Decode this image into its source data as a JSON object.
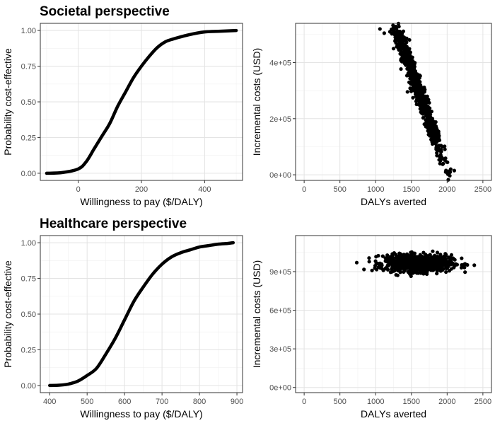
{
  "titles": {
    "top": "Societal perspective",
    "bottom": "Healthcare perspective"
  },
  "chart_data": [
    {
      "type": "line",
      "panel": "top-left",
      "xlabel": "Willingness to pay ($/DALY)",
      "ylabel": "Probability cost-effective",
      "xlim": [
        -120,
        520
      ],
      "ylim": [
        -0.05,
        1.05
      ],
      "xticks": [
        0,
        200,
        400
      ],
      "xtick_labels": [
        "0",
        "200",
        "400"
      ],
      "yticks": [
        0,
        0.25,
        0.5,
        0.75,
        1
      ],
      "ytick_labels": [
        "0.00",
        "0.25",
        "0.50",
        "0.75",
        "1.00"
      ],
      "grid": true,
      "series": [
        {
          "x": [
            -100,
            -50,
            0,
            25,
            50,
            75,
            100,
            125,
            150,
            175,
            200,
            225,
            250,
            275,
            300,
            350,
            400,
            450,
            500
          ],
          "y": [
            0.0,
            0.005,
            0.03,
            0.08,
            0.17,
            0.26,
            0.35,
            0.47,
            0.57,
            0.67,
            0.75,
            0.82,
            0.88,
            0.92,
            0.94,
            0.97,
            0.99,
            0.995,
            1.0
          ]
        }
      ]
    },
    {
      "type": "scatter",
      "panel": "top-right",
      "xlabel": "DALYs averted",
      "ylabel": "Incremental costs (USD)",
      "xlim": [
        -120,
        2620
      ],
      "ylim": [
        -20000,
        540000
      ],
      "xticks": [
        0,
        500,
        1000,
        1500,
        2000,
        2500
      ],
      "xtick_labels": [
        "0",
        "500",
        "1000",
        "1500",
        "2000",
        "2500"
      ],
      "yticks": [
        0,
        200000,
        400000
      ],
      "ytick_labels": [
        "0e+00",
        "2e+05",
        "4e+05"
      ],
      "grid": true,
      "distribution": {
        "x_mean": 1560,
        "x_sd": 200,
        "y_intercept": 1420000,
        "y_slope": -700,
        "y_sd": 28000,
        "n": 900
      },
      "sample_points": [
        [
          1060,
          520000
        ],
        [
          1120,
          505000
        ],
        [
          1200,
          510000
        ],
        [
          1250,
          450000
        ],
        [
          1900,
          40000
        ],
        [
          2050,
          20000
        ],
        [
          2100,
          15000
        ],
        [
          1980,
          10000
        ]
      ]
    },
    {
      "type": "line",
      "panel": "bottom-left",
      "xlabel": "Willingness to pay ($/DALY)",
      "ylabel": "Probability cost-effective",
      "xlim": [
        375,
        915
      ],
      "ylim": [
        -0.05,
        1.05
      ],
      "xticks": [
        400,
        500,
        600,
        700,
        800,
        900
      ],
      "xtick_labels": [
        "400",
        "500",
        "600",
        "700",
        "800",
        "900"
      ],
      "yticks": [
        0,
        0.25,
        0.5,
        0.75,
        1
      ],
      "ytick_labels": [
        "0.00",
        "0.25",
        "0.50",
        "0.75",
        "1.00"
      ],
      "grid": true,
      "series": [
        {
          "x": [
            400,
            425,
            450,
            475,
            500,
            525,
            550,
            575,
            600,
            625,
            650,
            675,
            700,
            725,
            750,
            775,
            800,
            825,
            850,
            875,
            890
          ],
          "y": [
            0.0,
            0.002,
            0.01,
            0.03,
            0.07,
            0.12,
            0.22,
            0.33,
            0.46,
            0.59,
            0.69,
            0.78,
            0.85,
            0.9,
            0.93,
            0.95,
            0.97,
            0.98,
            0.99,
            0.995,
            1.0
          ]
        }
      ]
    },
    {
      "type": "scatter",
      "panel": "bottom-right",
      "xlabel": "DALYs averted",
      "ylabel": "Incremental costs (USD)",
      "xlim": [
        -120,
        2620
      ],
      "ylim": [
        -40000,
        1180000
      ],
      "xticks": [
        0,
        500,
        1000,
        1500,
        2000,
        2500
      ],
      "xtick_labels": [
        "0",
        "500",
        "1000",
        "1500",
        "2000",
        "2500"
      ],
      "yticks": [
        0,
        300000,
        600000,
        900000
      ],
      "ytick_labels": [
        "0e+00",
        "3e+05",
        "6e+05",
        "9e+05"
      ],
      "grid": true,
      "distribution": {
        "x_mean": 1600,
        "x_sd": 230,
        "y_mean": 965000,
        "y_sd": 32000,
        "n": 900
      },
      "sample_points": [
        [
          2380,
          950000
        ],
        [
          1060,
          930000
        ],
        [
          1100,
          1020000
        ],
        [
          2250,
          960000
        ]
      ]
    }
  ]
}
